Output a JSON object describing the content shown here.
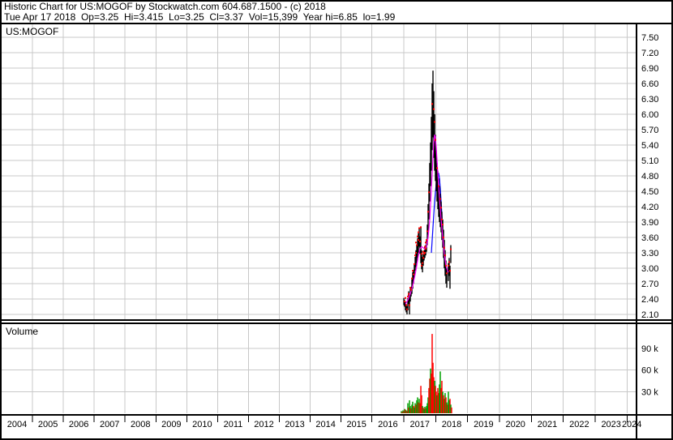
{
  "header": {
    "line1": "Historic Chart for US:MOGOF by Stockwatch.com 604.687.1500 - (c) 2018",
    "line2": "Tue Apr 17 2018  Op=3.25  Hi=3.415  Lo=3.25  Cl=3.37  Vol=15,399  Year hi=6.85  lo=1.99"
  },
  "price_panel": {
    "label": "US:MOGOF"
  },
  "volume_panel": {
    "label": "Volume"
  },
  "colors": {
    "grid": "#c8c8c8",
    "frame": "#000000",
    "price_bar": "#000000",
    "close_dot": "#ff0000",
    "ma_fast": "#ff00ff",
    "ma_slow": "#0000ff",
    "volume_up": "#00a000",
    "volume_down": "#ff0000",
    "text": "#000000"
  },
  "chart_data": {
    "type": "ohlc+volume",
    "title": "US:MOGOF",
    "x_axis": {
      "unit": "year",
      "range": [
        2004,
        2025
      ],
      "year_labels": [
        "2004",
        "2005",
        "2006",
        "2007",
        "2008",
        "2009",
        "2010",
        "2011",
        "2012",
        "2013",
        "2014",
        "2015",
        "2016",
        "2017",
        "2018",
        "2019",
        "2020",
        "2021",
        "2022",
        "2023",
        "2024"
      ]
    },
    "price_axis": {
      "tick_labels": [
        "7.50",
        "7.20",
        "6.90",
        "6.60",
        "6.30",
        "6.00",
        "5.70",
        "5.40",
        "5.10",
        "4.80",
        "4.50",
        "4.20",
        "3.90",
        "3.60",
        "3.30",
        "3.00",
        "2.70",
        "2.40",
        "2.10"
      ],
      "ticks": [
        7.5,
        7.2,
        6.9,
        6.6,
        6.3,
        6.0,
        5.7,
        5.4,
        5.1,
        4.8,
        4.5,
        4.2,
        3.9,
        3.6,
        3.3,
        3.0,
        2.7,
        2.4,
        2.1
      ],
      "step": 0.3
    },
    "volume_axis": {
      "tick_labels": [
        "90 k",
        "60 k",
        "30 k"
      ],
      "ticks_k": [
        90,
        60,
        30
      ]
    },
    "annotations": {
      "last_trade": {
        "date": "Tue Apr 17 2018",
        "open": 3.25,
        "high": 3.415,
        "low": 3.25,
        "close": 3.37,
        "volume": 15399
      },
      "year_high": 6.85,
      "year_low": 1.99
    },
    "series": {
      "price_bars": [
        [
          2017.0,
          2.28,
          2.42
        ],
        [
          2017.024,
          2.25,
          2.38
        ],
        [
          2017.05,
          2.18,
          2.35
        ],
        [
          2017.075,
          2.14,
          2.3
        ],
        [
          2017.1,
          2.1,
          2.26
        ],
        [
          2017.126,
          2.18,
          2.42
        ],
        [
          2017.151,
          2.3,
          2.55
        ],
        [
          2017.177,
          2.1,
          2.45
        ],
        [
          2017.202,
          2.35,
          2.6
        ],
        [
          2017.228,
          2.45,
          2.64
        ],
        [
          2017.253,
          2.5,
          2.78
        ],
        [
          2017.278,
          2.6,
          2.92
        ],
        [
          2017.304,
          2.7,
          2.97
        ],
        [
          2017.329,
          2.82,
          3.08
        ],
        [
          2017.355,
          2.95,
          3.22
        ],
        [
          2017.38,
          3.02,
          3.35
        ],
        [
          2017.406,
          3.1,
          3.45
        ],
        [
          2017.431,
          3.2,
          3.58
        ],
        [
          2017.456,
          3.3,
          3.68
        ],
        [
          2017.482,
          3.42,
          3.78
        ],
        [
          2017.507,
          3.28,
          3.62
        ],
        [
          2017.533,
          3.1,
          3.8
        ],
        [
          2017.558,
          2.98,
          3.35
        ],
        [
          2017.584,
          2.92,
          3.22
        ],
        [
          2017.609,
          3.05,
          3.28
        ],
        [
          2017.634,
          3.15,
          3.35
        ],
        [
          2017.66,
          3.2,
          3.42
        ],
        [
          2017.685,
          3.25,
          3.45
        ],
        [
          2017.711,
          3.32,
          3.55
        ],
        [
          2017.736,
          3.45,
          3.85
        ],
        [
          2017.761,
          3.65,
          4.25
        ],
        [
          2017.787,
          3.95,
          4.65
        ],
        [
          2017.812,
          4.3,
          5.05
        ],
        [
          2017.838,
          4.6,
          5.45
        ],
        [
          2017.863,
          4.9,
          5.95
        ],
        [
          2017.888,
          5.3,
          6.6
        ],
        [
          2017.914,
          5.55,
          6.85
        ],
        [
          2017.939,
          5.15,
          6.45
        ],
        [
          2017.965,
          4.9,
          6.0
        ],
        [
          2017.99,
          4.7,
          5.6
        ],
        [
          2018.015,
          4.5,
          5.3
        ],
        [
          2018.041,
          4.3,
          5.05
        ],
        [
          2018.066,
          4.15,
          4.9
        ],
        [
          2018.092,
          4.0,
          4.75
        ],
        [
          2018.117,
          3.9,
          4.6
        ],
        [
          2018.142,
          3.8,
          4.45
        ],
        [
          2018.168,
          3.7,
          4.3
        ],
        [
          2018.193,
          3.55,
          4.1
        ],
        [
          2018.219,
          3.4,
          3.95
        ],
        [
          2018.244,
          3.2,
          3.75
        ],
        [
          2018.269,
          3.0,
          3.55
        ],
        [
          2018.295,
          2.85,
          3.35
        ],
        [
          2018.32,
          2.7,
          3.15
        ],
        [
          2018.346,
          2.62,
          3.0
        ],
        [
          2018.396,
          2.75,
          3.1
        ],
        [
          2018.422,
          2.85,
          3.2
        ],
        [
          2018.447,
          2.6,
          3.05
        ],
        [
          2018.472,
          3.1,
          3.45
        ]
      ],
      "close_dots": [
        [
          2017.024,
          2.35
        ],
        [
          2017.05,
          2.42
        ],
        [
          2017.075,
          2.28
        ],
        [
          2017.1,
          2.2
        ],
        [
          2017.126,
          2.45
        ],
        [
          2017.151,
          2.5
        ],
        [
          2017.177,
          2.28
        ],
        [
          2017.202,
          2.62
        ],
        [
          2017.228,
          2.58
        ],
        [
          2017.253,
          2.8
        ],
        [
          2017.278,
          2.95
        ],
        [
          2017.304,
          2.88
        ],
        [
          2017.329,
          3.08
        ],
        [
          2017.355,
          3.25
        ],
        [
          2017.38,
          3.3
        ],
        [
          2017.38,
          3.5
        ],
        [
          2017.406,
          3.45
        ],
        [
          2017.431,
          3.62
        ],
        [
          2017.456,
          3.7
        ],
        [
          2017.456,
          3.55
        ],
        [
          2017.482,
          3.78
        ],
        [
          2017.507,
          3.52
        ],
        [
          2017.533,
          3.8
        ],
        [
          2017.558,
          3.28
        ],
        [
          2017.558,
          3.05
        ],
        [
          2017.584,
          3.1
        ],
        [
          2017.609,
          3.32
        ],
        [
          2017.609,
          3.2
        ],
        [
          2017.634,
          3.28
        ],
        [
          2017.66,
          3.42
        ],
        [
          2017.66,
          3.3
        ],
        [
          2017.685,
          3.38
        ],
        [
          2017.685,
          3.5
        ],
        [
          2017.711,
          3.55
        ],
        [
          2017.736,
          3.72
        ],
        [
          2017.761,
          4.1
        ],
        [
          2017.787,
          4.48
        ],
        [
          2017.888,
          6.2
        ],
        [
          2017.939,
          6.1
        ],
        [
          2017.965,
          5.85
        ],
        [
          2017.99,
          5.5
        ],
        [
          2018.041,
          4.95
        ],
        [
          2018.092,
          4.6
        ],
        [
          2018.142,
          4.35
        ],
        [
          2018.168,
          4.18
        ],
        [
          2018.193,
          3.95
        ],
        [
          2018.219,
          3.85
        ],
        [
          2018.244,
          3.6
        ],
        [
          2018.269,
          3.4
        ],
        [
          2018.295,
          3.25
        ],
        [
          2018.32,
          3.05
        ],
        [
          2018.346,
          2.9
        ],
        [
          2018.396,
          3.05
        ],
        [
          2018.422,
          3.12
        ],
        [
          2018.447,
          2.95
        ],
        [
          2018.472,
          3.37
        ]
      ],
      "ma_fast_magenta": [
        [
          2017.05,
          2.3
        ],
        [
          2017.126,
          2.38
        ],
        [
          2017.202,
          2.5
        ],
        [
          2017.278,
          2.66
        ],
        [
          2017.355,
          2.88
        ],
        [
          2017.406,
          3.05
        ],
        [
          2017.456,
          3.25
        ],
        [
          2017.507,
          3.38
        ],
        [
          2017.558,
          3.42
        ],
        [
          2017.609,
          3.4
        ],
        [
          2017.66,
          3.37
        ],
        [
          2017.711,
          3.42
        ],
        [
          2017.761,
          3.6
        ],
        [
          2017.812,
          3.95
        ],
        [
          2017.863,
          4.55
        ],
        [
          2017.914,
          5.15
        ],
        [
          2017.939,
          5.45
        ],
        [
          2017.965,
          5.6
        ],
        [
          2017.99,
          5.55
        ],
        [
          2018.015,
          5.35
        ],
        [
          2018.041,
          5.1
        ],
        [
          2018.066,
          4.85
        ],
        [
          2018.092,
          4.6
        ],
        [
          2018.117,
          4.35
        ],
        [
          2018.168,
          3.95
        ],
        [
          2018.219,
          3.6
        ],
        [
          2018.269,
          3.28
        ],
        [
          2018.32,
          3.05
        ],
        [
          2018.371,
          2.95
        ],
        [
          2018.396,
          2.92
        ]
      ],
      "ma_slow_blue": [
        [
          2017.863,
          3.3
        ],
        [
          2017.914,
          3.8
        ],
        [
          2017.965,
          4.3
        ],
        [
          2018.015,
          4.65
        ],
        [
          2018.066,
          4.85
        ],
        [
          2018.092,
          4.85
        ],
        [
          2018.117,
          4.75
        ],
        [
          2018.142,
          4.55
        ],
        [
          2018.168,
          4.3
        ],
        [
          2018.193,
          4.05
        ],
        [
          2018.219,
          3.75
        ],
        [
          2018.244,
          3.45
        ],
        [
          2018.269,
          3.15
        ],
        [
          2018.295,
          2.95
        ]
      ],
      "volume_bars": [
        [
          2016.923,
          3,
          "u"
        ],
        [
          2016.948,
          2,
          "d"
        ],
        [
          2016.973,
          4,
          "u"
        ],
        [
          2016.999,
          3,
          "d"
        ],
        [
          2017.024,
          6,
          "u"
        ],
        [
          2017.05,
          5,
          "d"
        ],
        [
          2017.075,
          4,
          "u"
        ],
        [
          2017.1,
          3,
          "d"
        ],
        [
          2017.126,
          14,
          "u"
        ],
        [
          2017.151,
          8,
          "d"
        ],
        [
          2017.177,
          18,
          "u"
        ],
        [
          2017.202,
          10,
          "u"
        ],
        [
          2017.228,
          7,
          "d"
        ],
        [
          2017.253,
          12,
          "u"
        ],
        [
          2017.278,
          16,
          "u"
        ],
        [
          2017.304,
          10,
          "d"
        ],
        [
          2017.329,
          8,
          "u"
        ],
        [
          2017.355,
          14,
          "u"
        ],
        [
          2017.38,
          12,
          "d"
        ],
        [
          2017.406,
          18,
          "u"
        ],
        [
          2017.431,
          22,
          "u"
        ],
        [
          2017.456,
          15,
          "d"
        ],
        [
          2017.482,
          20,
          "u"
        ],
        [
          2017.507,
          14,
          "d"
        ],
        [
          2017.533,
          38,
          "d"
        ],
        [
          2017.558,
          25,
          "d"
        ],
        [
          2017.584,
          10,
          "u"
        ],
        [
          2017.609,
          8,
          "d"
        ],
        [
          2017.634,
          6,
          "u"
        ],
        [
          2017.66,
          9,
          "u"
        ],
        [
          2017.685,
          7,
          "d"
        ],
        [
          2017.711,
          10,
          "u"
        ],
        [
          2017.736,
          14,
          "u"
        ],
        [
          2017.761,
          22,
          "u"
        ],
        [
          2017.787,
          35,
          "d"
        ],
        [
          2017.812,
          48,
          "d"
        ],
        [
          2017.838,
          62,
          "u"
        ],
        [
          2017.863,
          55,
          "d"
        ],
        [
          2017.888,
          110,
          "d"
        ],
        [
          2017.914,
          70,
          "d"
        ],
        [
          2017.939,
          50,
          "d"
        ],
        [
          2017.965,
          45,
          "u"
        ],
        [
          2017.99,
          38,
          "d"
        ],
        [
          2018.015,
          30,
          "d"
        ],
        [
          2018.041,
          25,
          "u"
        ],
        [
          2018.066,
          35,
          "d"
        ],
        [
          2018.092,
          28,
          "d"
        ],
        [
          2018.117,
          40,
          "u"
        ],
        [
          2018.142,
          58,
          "u"
        ],
        [
          2018.168,
          35,
          "d"
        ],
        [
          2018.193,
          45,
          "d"
        ],
        [
          2018.219,
          30,
          "u"
        ],
        [
          2018.244,
          25,
          "d"
        ],
        [
          2018.269,
          20,
          "d"
        ],
        [
          2018.295,
          28,
          "u"
        ],
        [
          2018.32,
          22,
          "d"
        ],
        [
          2018.346,
          15,
          "u"
        ],
        [
          2018.371,
          12,
          "d"
        ],
        [
          2018.396,
          30,
          "u"
        ],
        [
          2018.422,
          18,
          "u"
        ],
        [
          2018.447,
          20,
          "d"
        ],
        [
          2018.472,
          12,
          "u"
        ],
        [
          2018.497,
          8,
          "d"
        ]
      ]
    }
  }
}
